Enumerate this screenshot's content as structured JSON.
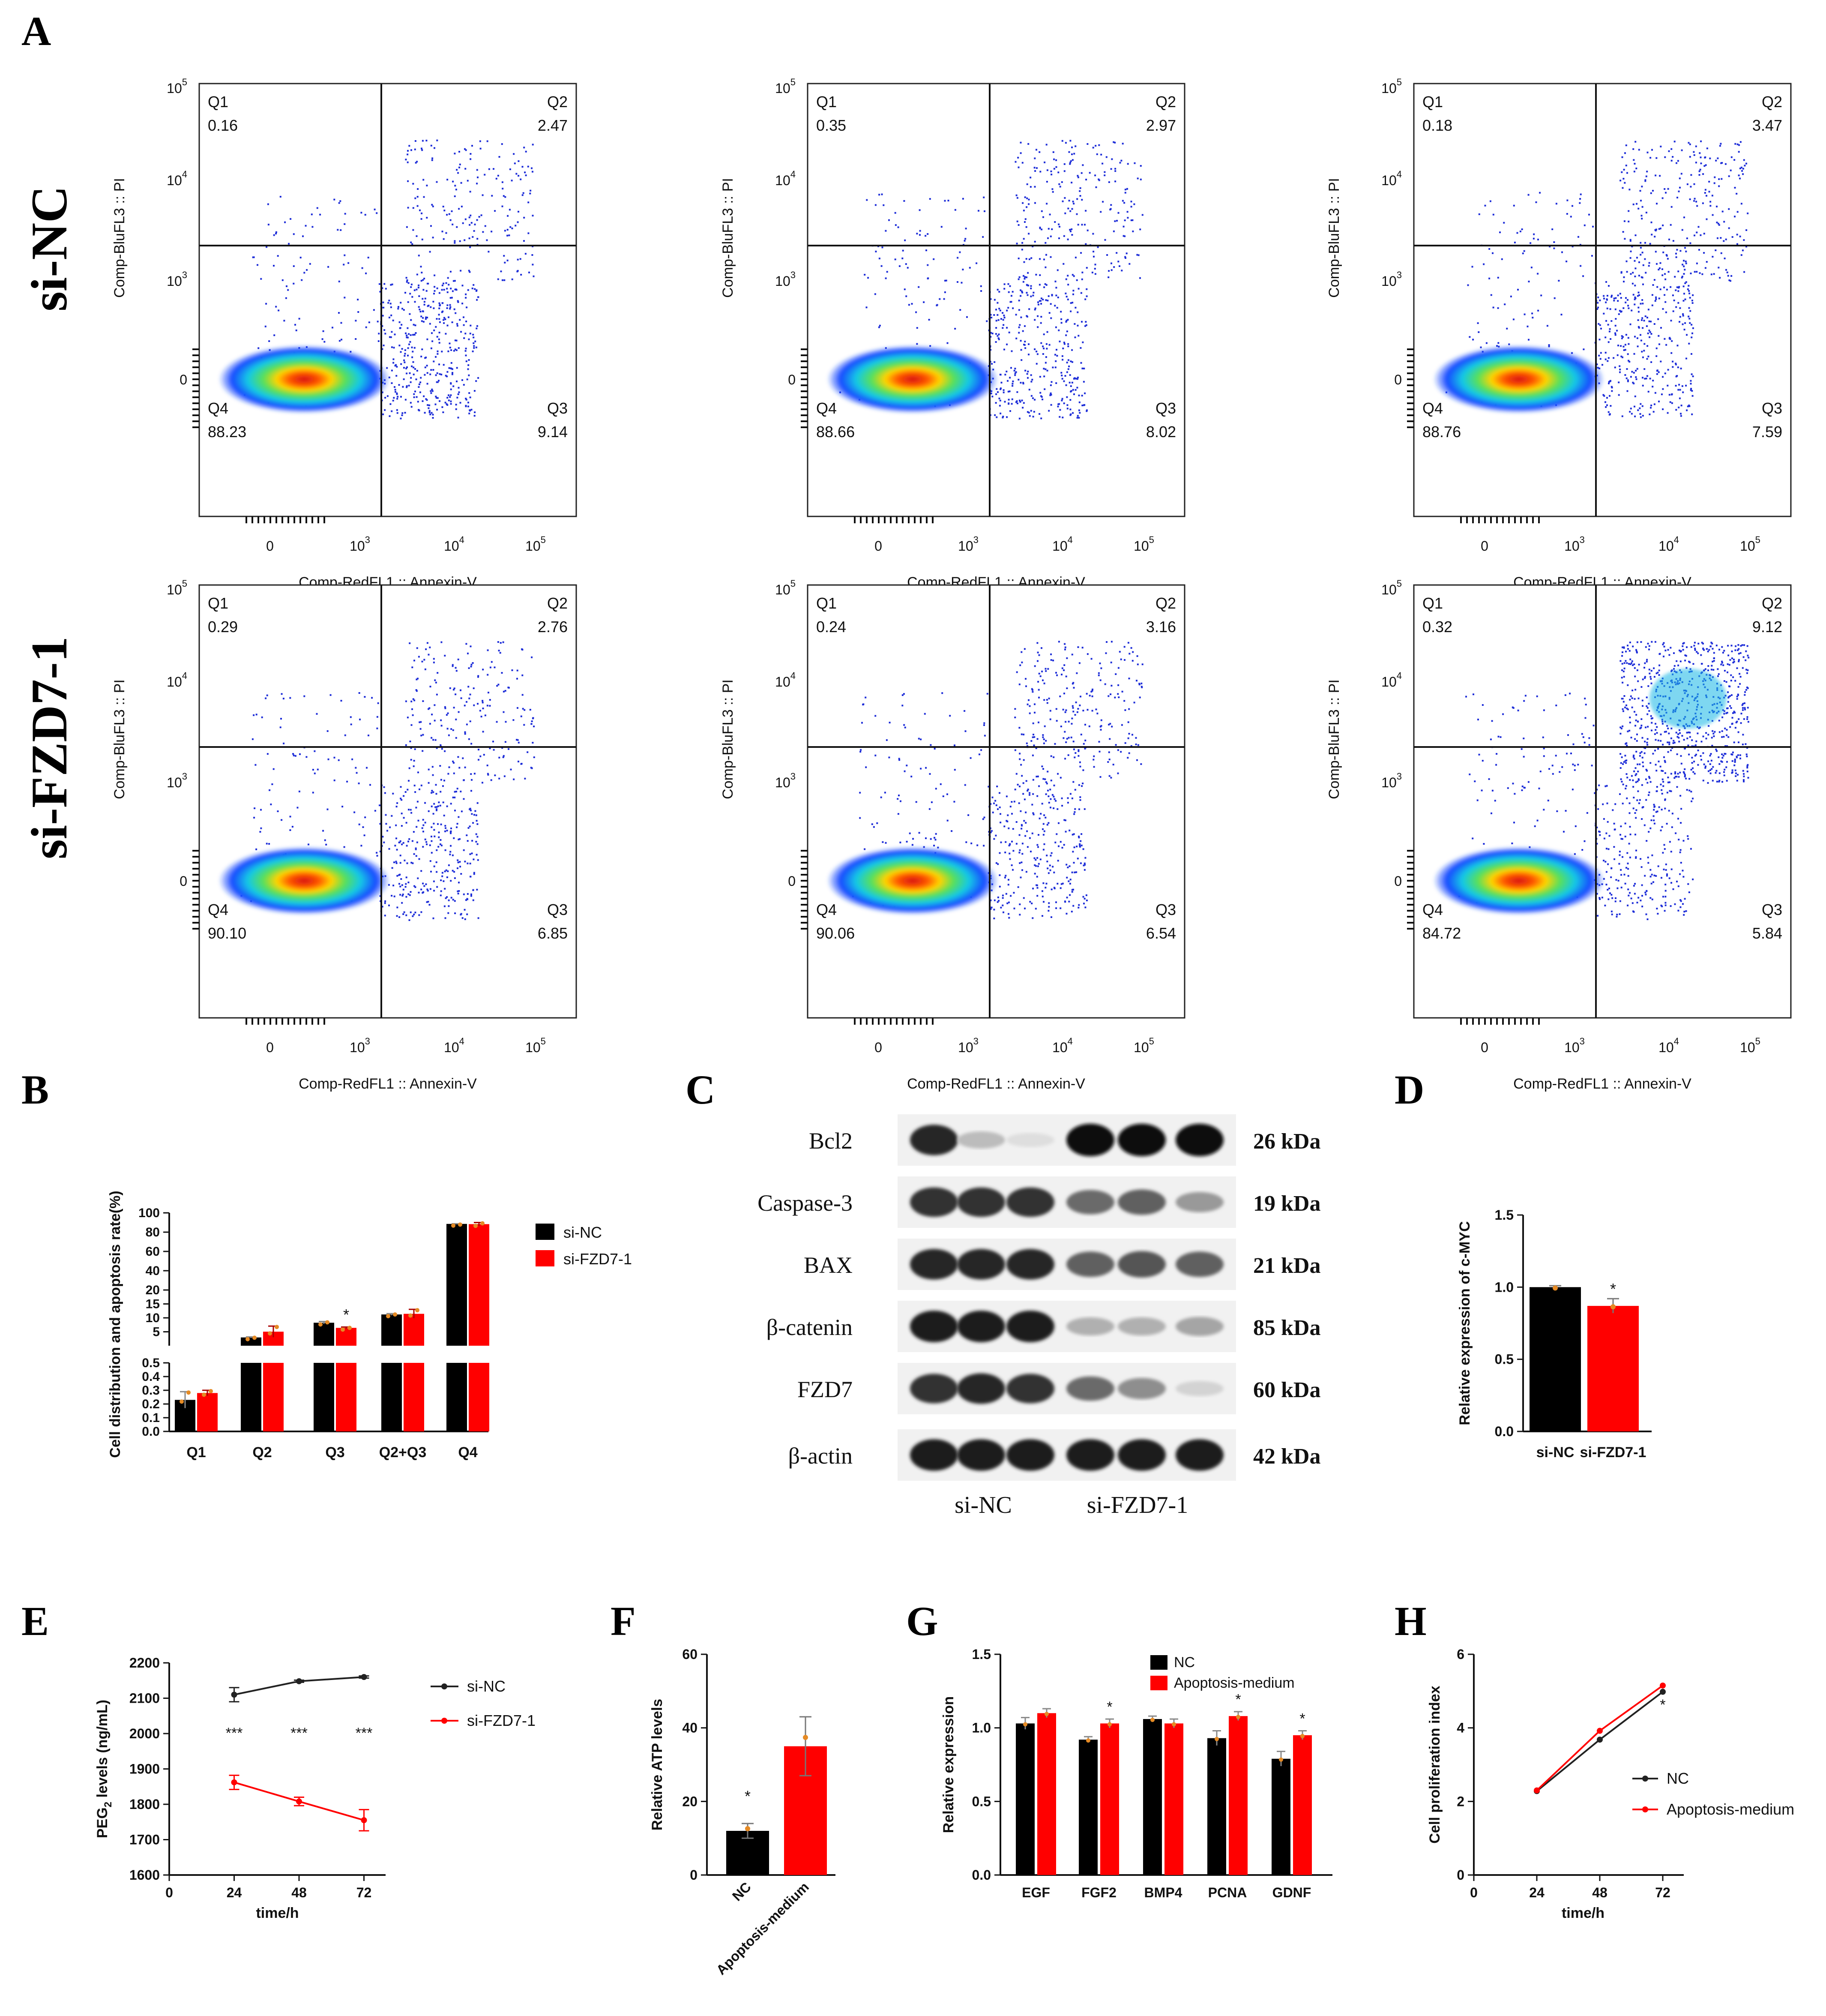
{
  "panel_letters": [
    "A",
    "B",
    "C",
    "D",
    "E",
    "F",
    "G",
    "H"
  ],
  "row_labels": [
    "si-NC",
    "si-FZD7-1"
  ],
  "chart_data": [
    {
      "type": "scatter",
      "id": "A",
      "subtype": "flow_cytometry_quadrant",
      "xlabel": "Comp-RedFL1 :: Annexin-V",
      "ylabel": "Comp-BluFL3 :: PI",
      "x_ticks": [
        "0",
        "10",
        "10",
        "10"
      ],
      "x_tick_exps": [
        "",
        "3",
        "4",
        "5"
      ],
      "y_ticks": [
        "0",
        "10",
        "10",
        "10"
      ],
      "y_tick_exps": [
        "",
        "3",
        "4",
        "5"
      ],
      "quadrant_names": [
        "Q1",
        "Q2",
        "Q3",
        "Q4"
      ],
      "plots": [
        {
          "group": "si-NC",
          "Q1": "0.16",
          "Q2": "2.47",
          "Q3": "9.14",
          "Q4": "88.23"
        },
        {
          "group": "si-NC",
          "Q1": "0.35",
          "Q2": "2.97",
          "Q3": "8.02",
          "Q4": "88.66"
        },
        {
          "group": "si-NC",
          "Q1": "0.18",
          "Q2": "3.47",
          "Q3": "7.59",
          "Q4": "88.76"
        },
        {
          "group": "si-FZD7-1",
          "Q1": "0.29",
          "Q2": "2.76",
          "Q3": "6.85",
          "Q4": "90.10"
        },
        {
          "group": "si-FZD7-1",
          "Q1": "0.24",
          "Q2": "3.16",
          "Q3": "6.54",
          "Q4": "90.06"
        },
        {
          "group": "si-FZD7-1",
          "Q1": "0.32",
          "Q2": "9.12",
          "Q3": "5.84",
          "Q4": "84.72"
        }
      ]
    },
    {
      "type": "bar",
      "id": "B",
      "ylabel": "Cell distribution and apoptosis rate(%)",
      "categories": [
        "Q1",
        "Q2",
        "Q3",
        "Q2+Q3",
        "Q4"
      ],
      "series": [
        {
          "name": "si-NC",
          "color": "#000000",
          "values": [
            0.23,
            2.97,
            8.25,
            11.22,
            88.55
          ],
          "errors": [
            0.06,
            0.2,
            0.45,
            0.3,
            0.2
          ]
        },
        {
          "name": "si-FZD7-1",
          "color": "#ff0000",
          "values": [
            0.28,
            5.04,
            6.41,
            11.45,
            88.29
          ],
          "errors": [
            0.02,
            2.0,
            0.3,
            1.6,
            1.7
          ]
        }
      ],
      "significance": [
        {
          "category": "Q3",
          "label": "*"
        }
      ],
      "y_axis_segments": [
        {
          "range": [
            0,
            0.5
          ],
          "ticks": [
            "0.0",
            "0.1",
            "0.2",
            "0.3",
            "0.4",
            "0.5"
          ]
        },
        {
          "range": [
            0,
            20
          ],
          "ticks": [
            "5",
            "10",
            "15",
            "20"
          ]
        },
        {
          "range": [
            20,
            100
          ],
          "ticks": [
            "20",
            "40",
            "60",
            "80",
            "100"
          ]
        }
      ]
    },
    {
      "type": "table",
      "id": "C",
      "subtype": "western_blot",
      "proteins": [
        {
          "name": "Bcl2",
          "size": "26 kDa",
          "intensity": [
            0.9,
            0.25,
            0.1,
            1.0,
            1.0,
            1.0
          ]
        },
        {
          "name": "Caspase-3",
          "size": "19 kDa",
          "intensity": [
            0.85,
            0.85,
            0.85,
            0.6,
            0.65,
            0.4
          ]
        },
        {
          "name": "BAX",
          "size": "21 kDa",
          "intensity": [
            0.9,
            0.9,
            0.9,
            0.65,
            0.7,
            0.65
          ]
        },
        {
          "name": "β-catenin",
          "size": "85 kDa",
          "intensity": [
            0.95,
            0.95,
            0.95,
            0.3,
            0.3,
            0.35
          ]
        },
        {
          "name": "FZD7",
          "size": "60 kDa",
          "intensity": [
            0.85,
            0.9,
            0.85,
            0.6,
            0.45,
            0.15
          ]
        },
        {
          "name": "β-actin",
          "size": "42 kDa",
          "intensity": [
            0.95,
            0.95,
            0.95,
            0.95,
            0.95,
            0.95
          ]
        }
      ],
      "groups": [
        "si-NC",
        "si-FZD7-1"
      ]
    },
    {
      "type": "bar",
      "id": "D",
      "ylabel": "Relative expression of c-MYC",
      "categories": [
        "si-NC",
        "si-FZD7-1"
      ],
      "values": [
        1.0,
        0.87
      ],
      "errors": [
        0.01,
        0.05
      ],
      "colors": [
        "#000000",
        "#ff0000"
      ],
      "ylim": [
        0,
        1.5
      ],
      "yticks": [
        "0.0",
        "0.5",
        "1.0",
        "1.5"
      ],
      "significance": [
        {
          "category": "si-FZD7-1",
          "label": "*"
        }
      ]
    },
    {
      "type": "line",
      "id": "E",
      "xlabel": "time/h",
      "ylabel_base": "PEG",
      "ylabel_sub": "2",
      "ylabel_rest": " levels (ng/mL)",
      "x": [
        24,
        48,
        72
      ],
      "series": [
        {
          "name": "si-NC",
          "color": "#222222",
          "values": [
            2110,
            2148,
            2160
          ],
          "errors": [
            20,
            3,
            3
          ]
        },
        {
          "name": "si-FZD7-1",
          "color": "#ff0000",
          "values": [
            1862,
            1808,
            1755
          ],
          "errors": [
            20,
            12,
            30
          ]
        }
      ],
      "xlim": [
        0,
        80
      ],
      "ylim": [
        1600,
        2200
      ],
      "xticks": [
        "0",
        "24",
        "48",
        "72"
      ],
      "yticks": [
        "1600",
        "1700",
        "1800",
        "1900",
        "2000",
        "2100",
        "2200"
      ],
      "annotations": [
        "***",
        "***",
        "***"
      ]
    },
    {
      "type": "bar",
      "id": "F",
      "ylabel": "Relative ATP levels",
      "categories": [
        "NC",
        "Apoptosis-medium"
      ],
      "values": [
        12,
        35
      ],
      "errors": [
        2,
        8
      ],
      "colors": [
        "#000000",
        "#ff0000"
      ],
      "ylim": [
        0,
        60
      ],
      "yticks": [
        "0",
        "20",
        "40",
        "60"
      ],
      "significance": [
        {
          "category": "NC",
          "label": "*"
        }
      ]
    },
    {
      "type": "bar",
      "id": "G",
      "ylabel": "Relative expression",
      "categories": [
        "EGF",
        "FGF2",
        "BMP4",
        "PCNA",
        "GDNF"
      ],
      "series": [
        {
          "name": "NC",
          "color": "#000000",
          "values": [
            1.03,
            0.92,
            1.06,
            0.93,
            0.79
          ],
          "errors": [
            0.04,
            0.02,
            0.02,
            0.05,
            0.05
          ]
        },
        {
          "name": "Apoptosis-medium",
          "color": "#ff0000",
          "values": [
            1.1,
            1.03,
            1.03,
            1.08,
            0.95
          ],
          "errors": [
            0.03,
            0.03,
            0.03,
            0.03,
            0.03
          ]
        }
      ],
      "ylim": [
        0,
        1.5
      ],
      "yticks": [
        "0.0",
        "0.5",
        "1.0",
        "1.5"
      ],
      "significance": [
        {
          "category": "FGF2",
          "label": "*"
        },
        {
          "category": "PCNA",
          "label": "*"
        },
        {
          "category": "GDNF",
          "label": "*"
        }
      ]
    },
    {
      "type": "line",
      "id": "H",
      "xlabel": "time/h",
      "ylabel": "Cell proliferation index",
      "x": [
        24,
        48,
        72
      ],
      "series": [
        {
          "name": "NC",
          "color": "#222222",
          "values": [
            2.28,
            3.68,
            4.98
          ]
        },
        {
          "name": "Apoptosis-medium",
          "color": "#ff0000",
          "values": [
            2.3,
            3.92,
            5.15
          ]
        }
      ],
      "xlim": [
        0,
        80
      ],
      "ylim": [
        0,
        6
      ],
      "xticks": [
        "0",
        "24",
        "48",
        "72"
      ],
      "yticks": [
        "0",
        "2",
        "4",
        "6"
      ],
      "annotations": [
        "*"
      ]
    }
  ]
}
